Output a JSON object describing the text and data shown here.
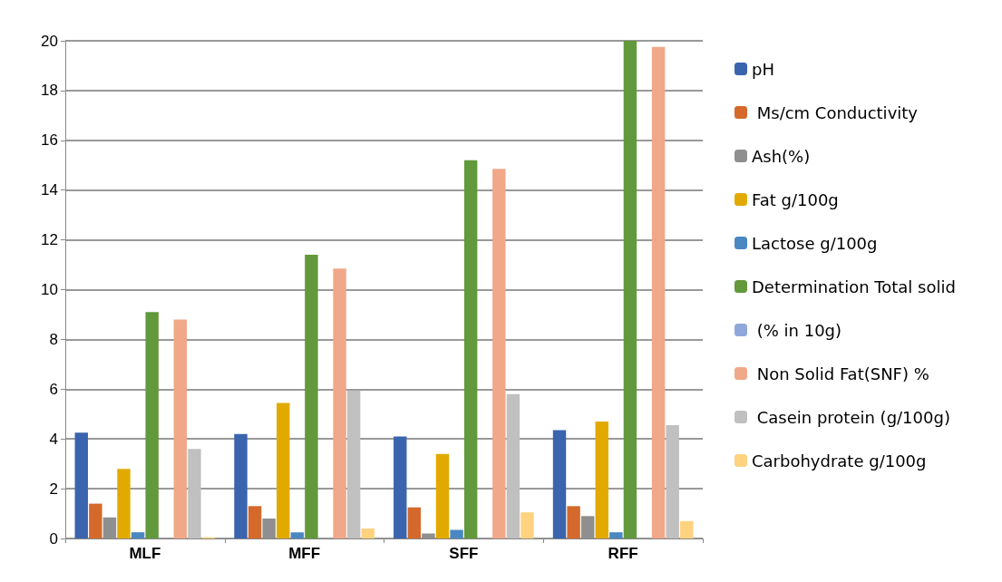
{
  "chart_data": {
    "type": "bar",
    "categories": [
      "MLF",
      "MFF",
      "SFF",
      "RFF"
    ],
    "series": [
      {
        "name": "pH",
        "color": "#3a64ad",
        "values": [
          4.25,
          4.2,
          4.1,
          4.35
        ]
      },
      {
        "name": " Ms/cm Conductivity",
        "color": "#d4692b",
        "values": [
          1.4,
          1.3,
          1.25,
          1.3
        ]
      },
      {
        "name": "Ash(%)",
        "color": "#8f8f8f",
        "values": [
          0.85,
          0.8,
          0.2,
          0.9
        ]
      },
      {
        "name": "Fat g/100g",
        "color": "#e2aa00",
        "values": [
          2.8,
          5.45,
          3.4,
          4.7
        ]
      },
      {
        "name": "Lactose g/100g",
        "color": "#4a88c2",
        "values": [
          0.25,
          0.25,
          0.35,
          0.25
        ]
      },
      {
        "name": "Determination Total solid",
        "color": "#62993c",
        "values": [
          9.1,
          11.4,
          15.2,
          20.0
        ]
      },
      {
        "name": " (% in 10g)",
        "color": "#8fa8dc",
        "values": [
          null,
          null,
          null,
          null
        ]
      },
      {
        "name": " Non Solid Fat(SNF) %",
        "color": "#f0a888",
        "values": [
          8.8,
          10.85,
          14.85,
          19.75
        ]
      },
      {
        "name": " Casein protein (g/100g)",
        "color": "#c0c0c0",
        "values": [
          3.6,
          5.95,
          5.8,
          4.55
        ]
      },
      {
        "name": "Carbohydrate g/100g",
        "color": "#ffd27f",
        "values": [
          0.05,
          0.4,
          1.05,
          0.7
        ]
      }
    ],
    "ylim": [
      0,
      20
    ],
    "yticks": [
      0,
      2,
      4,
      6,
      8,
      10,
      12,
      14,
      16,
      18,
      20
    ],
    "grid": "y",
    "legend": "right"
  }
}
